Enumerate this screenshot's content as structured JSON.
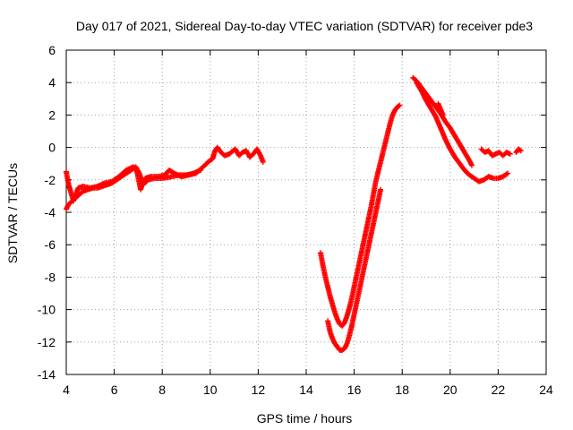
{
  "chart_data": {
    "type": "scatter",
    "title": "Day 017 of 2021, Sidereal Day-to-day VTEC variation (SDTVAR) for receiver pde3",
    "xlabel": "GPS time / hours",
    "ylabel": "SDTVAR / TECUs",
    "xlim": [
      4,
      24
    ],
    "ylim": [
      -14,
      6
    ],
    "xticks": [
      4,
      6,
      8,
      10,
      12,
      14,
      16,
      18,
      20,
      22,
      24
    ],
    "yticks": [
      -14,
      -12,
      -10,
      -8,
      -6,
      -4,
      -2,
      0,
      2,
      4,
      6
    ],
    "grid": true,
    "marker": "+",
    "color": "#ff0000",
    "series": [
      {
        "name": "SDTVAR",
        "segments": [
          [
            [
              4.0,
              -1.5
            ],
            [
              4.1,
              -2.3
            ],
            [
              4.2,
              -2.8
            ],
            [
              4.3,
              -3.3
            ],
            [
              4.4,
              -2.9
            ],
            [
              4.5,
              -2.5
            ],
            [
              4.7,
              -2.4
            ],
            [
              5.0,
              -2.5
            ],
            [
              5.3,
              -2.4
            ],
            [
              5.6,
              -2.2
            ],
            [
              5.9,
              -2.1
            ],
            [
              6.2,
              -1.8
            ],
            [
              6.5,
              -1.4
            ],
            [
              6.8,
              -1.2
            ],
            [
              6.95,
              -1.5
            ],
            [
              7.1,
              -2.6
            ],
            [
              7.2,
              -2.1
            ],
            [
              7.3,
              -1.9
            ],
            [
              7.5,
              -1.8
            ],
            [
              7.8,
              -1.8
            ],
            [
              8.1,
              -1.7
            ],
            [
              8.3,
              -1.4
            ],
            [
              8.5,
              -1.6
            ],
            [
              8.8,
              -1.8
            ],
            [
              9.1,
              -1.7
            ],
            [
              9.4,
              -1.6
            ],
            [
              9.7,
              -1.2
            ],
            [
              9.85,
              -1.0
            ]
          ],
          [
            [
              4.0,
              -3.8
            ],
            [
              4.1,
              -3.5
            ],
            [
              4.25,
              -3.3
            ],
            [
              4.4,
              -3.1
            ],
            [
              4.55,
              -2.9
            ],
            [
              4.7,
              -2.7
            ],
            [
              4.9,
              -2.6
            ],
            [
              5.1,
              -2.5
            ],
            [
              5.3,
              -2.5
            ],
            [
              5.5,
              -2.4
            ],
            [
              5.7,
              -2.3
            ],
            [
              5.9,
              -2.2
            ],
            [
              6.1,
              -2.0
            ],
            [
              6.3,
              -1.8
            ],
            [
              6.5,
              -1.6
            ],
            [
              6.7,
              -1.4
            ],
            [
              6.9,
              -1.2
            ],
            [
              7.05,
              -1.6
            ],
            [
              7.2,
              -2.3
            ],
            [
              7.4,
              -2.0
            ],
            [
              7.7,
              -1.9
            ],
            [
              8.0,
              -1.9
            ],
            [
              8.4,
              -1.8
            ],
            [
              8.7,
              -1.7
            ],
            [
              9.0,
              -1.7
            ],
            [
              9.3,
              -1.6
            ],
            [
              9.6,
              -1.4
            ]
          ],
          [
            [
              9.9,
              -0.9
            ],
            [
              10.1,
              -0.7
            ],
            [
              10.2,
              -0.2
            ],
            [
              10.3,
              0.0
            ],
            [
              10.45,
              -0.3
            ],
            [
              10.6,
              -0.5
            ],
            [
              10.8,
              -0.4
            ],
            [
              10.95,
              -0.2
            ],
            [
              11.05,
              -0.1
            ],
            [
              11.2,
              -0.5
            ],
            [
              11.35,
              -0.3
            ],
            [
              11.5,
              -0.2
            ],
            [
              11.65,
              -0.6
            ],
            [
              11.8,
              -0.4
            ],
            [
              11.95,
              -0.1
            ],
            [
              12.1,
              -0.5
            ],
            [
              12.2,
              -0.9
            ]
          ],
          [
            [
              14.6,
              -6.5
            ],
            [
              14.7,
              -7.3
            ],
            [
              14.8,
              -8.0
            ],
            [
              14.9,
              -8.6
            ],
            [
              15.0,
              -9.2
            ],
            [
              15.1,
              -9.7
            ],
            [
              15.2,
              -10.2
            ],
            [
              15.3,
              -10.6
            ],
            [
              15.4,
              -10.9
            ],
            [
              15.5,
              -11.0
            ],
            [
              15.6,
              -10.8
            ],
            [
              15.7,
              -10.4
            ],
            [
              15.8,
              -9.9
            ],
            [
              15.9,
              -9.3
            ],
            [
              16.0,
              -8.6
            ],
            [
              16.1,
              -7.9
            ],
            [
              16.2,
              -7.2
            ],
            [
              16.3,
              -6.5
            ],
            [
              16.4,
              -5.8
            ],
            [
              16.5,
              -5.1
            ],
            [
              16.6,
              -4.4
            ],
            [
              16.7,
              -3.7
            ],
            [
              16.8,
              -2.9
            ],
            [
              16.9,
              -2.1
            ],
            [
              17.0,
              -1.5
            ],
            [
              17.1,
              -0.9
            ],
            [
              17.2,
              -0.3
            ],
            [
              17.3,
              0.3
            ],
            [
              17.4,
              0.9
            ],
            [
              17.5,
              1.5
            ],
            [
              17.6,
              2.0
            ],
            [
              17.7,
              2.3
            ],
            [
              17.8,
              2.5
            ],
            [
              17.9,
              2.6
            ]
          ],
          [
            [
              14.9,
              -10.7
            ],
            [
              15.0,
              -11.4
            ],
            [
              15.1,
              -11.8
            ],
            [
              15.2,
              -12.1
            ],
            [
              15.3,
              -12.3
            ],
            [
              15.4,
              -12.5
            ],
            [
              15.5,
              -12.5
            ],
            [
              15.6,
              -12.4
            ],
            [
              15.7,
              -12.1
            ],
            [
              15.8,
              -11.6
            ],
            [
              15.9,
              -11.0
            ],
            [
              16.0,
              -10.3
            ],
            [
              16.1,
              -9.6
            ],
            [
              16.2,
              -8.9
            ],
            [
              16.3,
              -8.2
            ],
            [
              16.4,
              -7.5
            ],
            [
              16.5,
              -6.8
            ],
            [
              16.6,
              -6.1
            ],
            [
              16.7,
              -5.4
            ],
            [
              16.8,
              -4.7
            ],
            [
              16.9,
              -4.0
            ],
            [
              17.0,
              -3.3
            ],
            [
              17.1,
              -2.6
            ]
          ],
          [
            [
              18.45,
              4.3
            ],
            [
              18.6,
              4.1
            ],
            [
              18.8,
              3.7
            ],
            [
              19.0,
              3.3
            ],
            [
              19.2,
              2.9
            ],
            [
              19.4,
              2.5
            ],
            [
              19.6,
              2.1
            ],
            [
              19.8,
              1.6
            ],
            [
              20.0,
              1.2
            ],
            [
              20.2,
              0.7
            ],
            [
              20.4,
              0.2
            ],
            [
              20.6,
              -0.3
            ],
            [
              20.8,
              -0.8
            ],
            [
              20.9,
              -1.1
            ]
          ],
          [
            [
              18.6,
              4.0
            ],
            [
              18.8,
              3.5
            ],
            [
              19.0,
              2.9
            ],
            [
              19.2,
              2.4
            ],
            [
              19.4,
              1.9
            ],
            [
              19.6,
              1.2
            ],
            [
              19.8,
              0.5
            ],
            [
              20.0,
              -0.1
            ],
            [
              20.2,
              -0.6
            ],
            [
              20.4,
              -1.0
            ],
            [
              20.6,
              -1.4
            ],
            [
              20.8,
              -1.7
            ],
            [
              21.0,
              -1.9
            ],
            [
              21.2,
              -2.1
            ],
            [
              21.4,
              -2.0
            ],
            [
              21.6,
              -1.8
            ],
            [
              21.8,
              -1.9
            ],
            [
              22.0,
              -1.9
            ],
            [
              22.2,
              -1.8
            ],
            [
              22.4,
              -1.6
            ]
          ],
          [
            [
              19.5,
              2.7
            ],
            [
              19.7,
              2.0
            ]
          ],
          [
            [
              21.3,
              -0.1
            ],
            [
              21.45,
              -0.3
            ],
            [
              21.6,
              -0.2
            ],
            [
              21.75,
              -0.5
            ],
            [
              21.9,
              -0.4
            ],
            [
              22.05,
              -0.3
            ],
            [
              22.2,
              -0.5
            ],
            [
              22.35,
              -0.3
            ],
            [
              22.5,
              -0.4
            ]
          ],
          [
            [
              22.75,
              -0.3
            ],
            [
              22.85,
              -0.1
            ],
            [
              22.95,
              -0.2
            ]
          ]
        ]
      }
    ]
  }
}
